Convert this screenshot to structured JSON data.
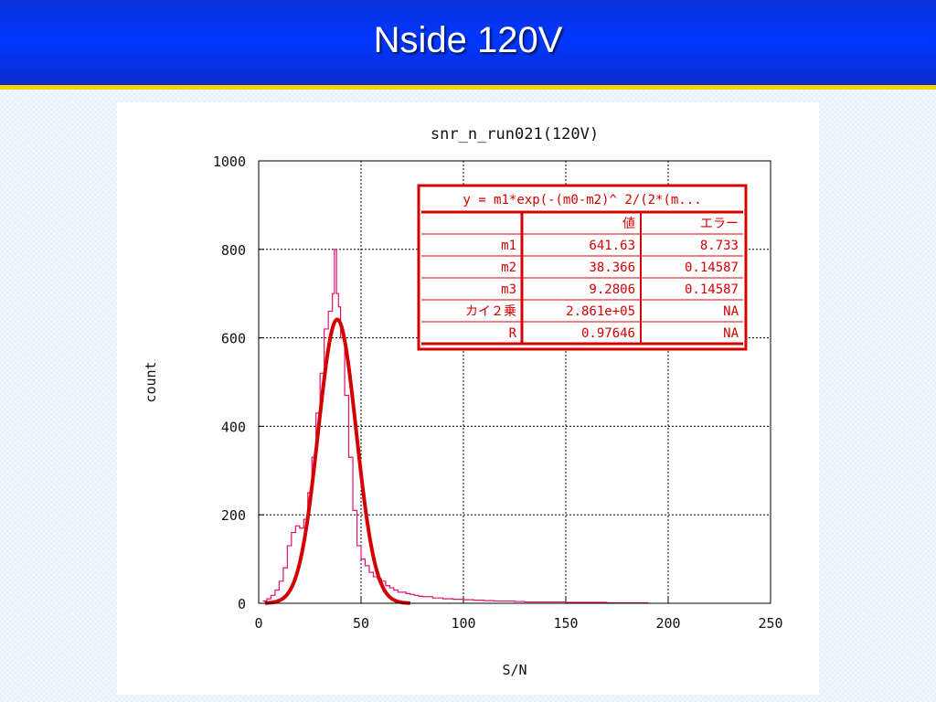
{
  "slide": {
    "title": "Nside 120V"
  },
  "chart_data": {
    "type": "line",
    "title": "snr_n_run021(120V)",
    "xlabel": "S/N",
    "ylabel": "count",
    "xlim": [
      0,
      250
    ],
    "ylim": [
      0,
      1000
    ],
    "xticks": [
      "0",
      "50",
      "100",
      "150",
      "200",
      "250"
    ],
    "yticks": [
      "0",
      "200",
      "400",
      "600",
      "800",
      "1000"
    ],
    "grid": true,
    "colors": {
      "histogram": "#e0106e",
      "fit": "#d40000",
      "table_border": "#d40000"
    },
    "series": [
      {
        "kind": "histogram",
        "x": [
          2,
          4,
          6,
          8,
          10,
          12,
          14,
          16,
          18,
          20,
          22,
          24,
          26,
          28,
          30,
          32,
          34,
          36,
          37,
          38,
          39,
          40,
          42,
          44,
          46,
          48,
          50,
          52,
          54,
          56,
          58,
          60,
          62,
          64,
          66,
          68,
          70,
          72,
          74,
          76,
          78,
          80,
          85,
          90,
          95,
          100,
          105,
          110,
          115,
          120,
          125,
          130,
          140,
          150,
          160,
          170,
          180,
          190
        ],
        "y": [
          5,
          10,
          18,
          30,
          50,
          80,
          130,
          160,
          175,
          170,
          190,
          250,
          330,
          430,
          520,
          620,
          660,
          700,
          800,
          700,
          670,
          600,
          470,
          330,
          210,
          130,
          100,
          85,
          70,
          60,
          55,
          50,
          40,
          35,
          30,
          25,
          25,
          22,
          20,
          18,
          16,
          15,
          12,
          10,
          9,
          8,
          7,
          6,
          5,
          5,
          4,
          3,
          3,
          2,
          2,
          1,
          1,
          0
        ]
      },
      {
        "kind": "fit",
        "function": "gaussian",
        "m1": 641.63,
        "m2": 38.366,
        "m3": 9.2806
      }
    ],
    "fit_table": {
      "formula": "y = m1*exp(-(m0-m2)^ 2/(2*(m...",
      "headers": [
        "",
        "値",
        "エラー"
      ],
      "rows": [
        [
          "m1",
          "641.63",
          "8.733"
        ],
        [
          "m2",
          "38.366",
          "0.14587"
        ],
        [
          "m3",
          "9.2806",
          "0.14587"
        ],
        [
          "カイ２乗",
          "2.861e+05",
          "NA"
        ],
        [
          "R",
          "0.97646",
          "NA"
        ]
      ]
    }
  }
}
